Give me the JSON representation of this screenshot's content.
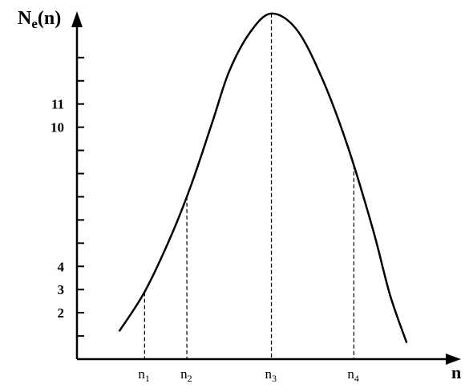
{
  "chart_data": {
    "type": "line",
    "ylabel": {
      "main": "N",
      "sub": "e",
      "suffix": "(n)"
    },
    "xlabel": "n",
    "ylim": [
      0,
      15
    ],
    "y_ticks": [
      1,
      2,
      3,
      4,
      5,
      6,
      7,
      8,
      9,
      10,
      11,
      12,
      13
    ],
    "y_tick_labels": [
      {
        "value": 2,
        "text": "2"
      },
      {
        "value": 3,
        "text": "3"
      },
      {
        "value": 4,
        "text": "4"
      },
      {
        "value": 10,
        "text": "10"
      },
      {
        "value": 11,
        "text": "11"
      }
    ],
    "x_markers": [
      {
        "main": "n",
        "sub": "1"
      },
      {
        "main": "n",
        "sub": "2"
      },
      {
        "main": "n",
        "sub": "3"
      },
      {
        "main": "n",
        "sub": "4"
      }
    ],
    "curve": [
      [
        -2.6,
        1.2
      ],
      [
        -2.0,
        2.9
      ],
      [
        -1.4,
        5.2
      ],
      [
        -0.9,
        7.5
      ],
      [
        -0.4,
        10.2
      ],
      [
        0.0,
        12.4
      ],
      [
        0.5,
        14.1
      ],
      [
        1.0,
        14.9
      ],
      [
        1.6,
        14.2
      ],
      [
        2.2,
        12.1
      ],
      [
        2.8,
        9.2
      ],
      [
        3.4,
        5.6
      ],
      [
        3.8,
        2.8
      ],
      [
        4.2,
        0.7
      ]
    ],
    "marker_x": [
      -2.0,
      -1.0,
      1.0,
      2.95
    ],
    "xlim": [
      -3.6,
      5.2
    ]
  }
}
